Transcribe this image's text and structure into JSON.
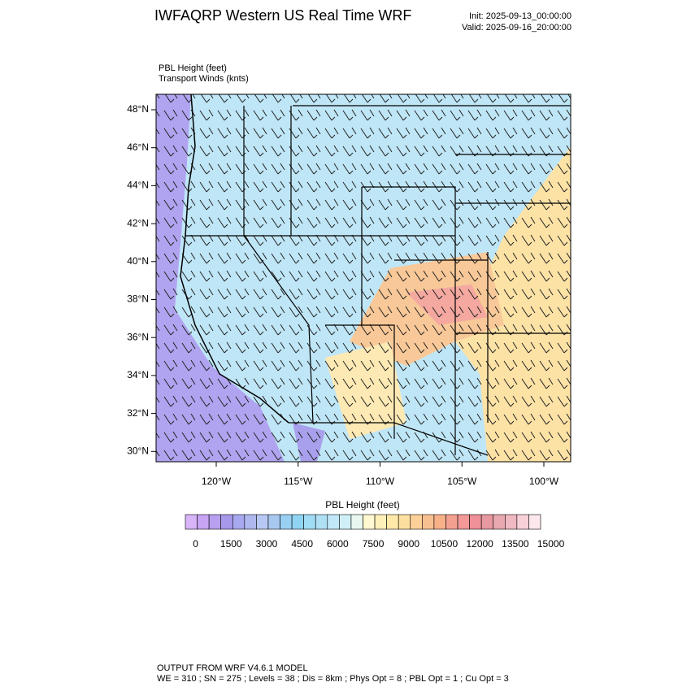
{
  "header": {
    "title": "IWFAQRP Western US Real Time WRF",
    "init": "Init: 2025-09-13_00:00:00",
    "valid": "Valid: 2025-09-16_20:00:00"
  },
  "fields": {
    "shaded": "PBL Height   (feet)",
    "vectors": "Transport Winds   (knts)"
  },
  "map": {
    "lat_labels": [
      "48°N",
      "46°N",
      "44°N",
      "42°N",
      "40°N",
      "38°N",
      "36°N",
      "34°N",
      "32°N",
      "30°N"
    ],
    "lon_labels": [
      "120°W",
      "115°W",
      "110°W",
      "105°W",
      "100°W"
    ]
  },
  "colorbar": {
    "title": "PBL Height  (feet)",
    "labels": [
      "0",
      "1500",
      "3000",
      "4500",
      "6000",
      "7500",
      "9000",
      "10500",
      "12000",
      "13500",
      "15000"
    ],
    "colors": [
      "#d8b4f8",
      "#c8a4f4",
      "#b8a0f0",
      "#a898ec",
      "#a8a8f0",
      "#b0b8f0",
      "#b8c8f4",
      "#a8c8f0",
      "#98d0f4",
      "#90d4f4",
      "#a0dcf4",
      "#b0e0f4",
      "#c0e8f8",
      "#d0f0f8",
      "#e8f8f0",
      "#fff8d0",
      "#fff0b8",
      "#ffe8a8",
      "#fde0a0",
      "#fcd098",
      "#f8c090",
      "#f8b088",
      "#f4a090",
      "#f49898",
      "#f09098",
      "#e898a0",
      "#e8a8b0",
      "#f0b8c0",
      "#f8d0d8",
      "#fce8ec"
    ]
  },
  "footer": {
    "line1": "OUTPUT FROM WRF V4.6.1 MODEL",
    "line2": "WE = 310 ; SN = 275 ; Levels = 38 ; Dis = 8km ; Phys Opt = 8 ; PBL Opt = 1 ; Cu Opt = 3"
  }
}
